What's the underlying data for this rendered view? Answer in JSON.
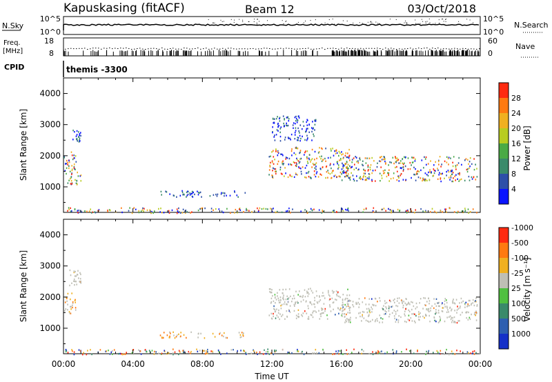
{
  "header": {
    "station": "Kapuskasing (fitACF)",
    "beam": "Beam 12",
    "date": "03/Oct/2018"
  },
  "strip_labels": {
    "nsky": "N.Sky",
    "freq_line1": "Freq.",
    "freq_line2": "[MHz]",
    "cpid": "CPID",
    "nsearch": "N.Search",
    "nave": "Nave",
    "nsky_ticks": [
      "10^5",
      "10^0"
    ],
    "nsearch_ticks": [
      "10^5",
      "10^0"
    ],
    "freq_ticks": [
      "18",
      "8"
    ],
    "nave_ticks": [
      "60",
      "0"
    ],
    "cpid_value": "themis -3300"
  },
  "chart_data": [
    {
      "type": "heatmap",
      "name_key": "power",
      "xlabel": "",
      "ylabel": "Slant Range [km]",
      "x_range_hours": [
        0,
        24
      ],
      "ylim": [
        180,
        4500
      ],
      "yticks": [
        1000,
        2000,
        3000,
        4000
      ],
      "colorbar": {
        "label": "Power [dB]",
        "ticks": [
          "4",
          "8",
          "12",
          "16",
          "20",
          "24",
          "28"
        ],
        "colors": [
          "#0a14ff",
          "#2d4fa8",
          "#3a8a6a",
          "#4aaa45",
          "#b8cc20",
          "#f0b020",
          "#ff7a10",
          "#ff2a10"
        ]
      },
      "echo_regions": [
        {
          "t": [
            0.0,
            0.7
          ],
          "r": [
            1500,
            2150
          ],
          "level": "mixed"
        },
        {
          "t": [
            0.1,
            1.0
          ],
          "r": [
            1100,
            1500
          ],
          "level": "mixed"
        },
        {
          "t": [
            0.5,
            1.0
          ],
          "r": [
            2400,
            2850
          ],
          "level": "weak"
        },
        {
          "t": [
            0.0,
            24.0
          ],
          "r": [
            180,
            350
          ],
          "level": "mixed"
        },
        {
          "t": [
            5.5,
            10.5
          ],
          "r": [
            700,
            900
          ],
          "level": "weak"
        },
        {
          "t": [
            11.8,
            16.5
          ],
          "r": [
            1300,
            2300
          ],
          "level": "mixed"
        },
        {
          "t": [
            12.0,
            14.5
          ],
          "r": [
            2500,
            3300
          ],
          "level": "weak"
        },
        {
          "t": [
            16.0,
            23.8
          ],
          "r": [
            1200,
            2000
          ],
          "level": "mixed"
        }
      ]
    },
    {
      "type": "heatmap",
      "name_key": "velocity",
      "xlabel": "Time UT",
      "ylabel": "Slant Range [km]",
      "x_range_hours": [
        0,
        24
      ],
      "xticks": [
        "00:00",
        "04:00",
        "08:00",
        "12:00",
        "16:00",
        "20:00",
        "00:00"
      ],
      "ylim": [
        180,
        4500
      ],
      "yticks": [
        1000,
        2000,
        3000,
        4000
      ],
      "colorbar": {
        "label": "Velocity [m s⁻¹]",
        "ticks": [
          "1000",
          "500",
          "100",
          "25",
          "-25",
          "-100",
          "-500",
          "-1000"
        ],
        "colors": [
          "#1530c8",
          "#2e5fb0",
          "#3a8a6a",
          "#50c040",
          "#bfbfb5",
          "#f0b020",
          "#ff7a10",
          "#ff2a10"
        ]
      },
      "echo_regions": [
        {
          "t": [
            0.0,
            0.7
          ],
          "r": [
            1500,
            2150
          ],
          "level": "negative"
        },
        {
          "t": [
            0.3,
            1.0
          ],
          "r": [
            2400,
            2900
          ],
          "level": "grey"
        },
        {
          "t": [
            0.0,
            24.0
          ],
          "r": [
            180,
            350
          ],
          "level": "mixed"
        },
        {
          "t": [
            5.5,
            10.5
          ],
          "r": [
            700,
            900
          ],
          "level": "negative"
        },
        {
          "t": [
            11.8,
            16.5
          ],
          "r": [
            1300,
            2300
          ],
          "level": "grey"
        },
        {
          "t": [
            16.0,
            23.8
          ],
          "r": [
            1200,
            2000
          ],
          "level": "grey"
        }
      ]
    }
  ]
}
